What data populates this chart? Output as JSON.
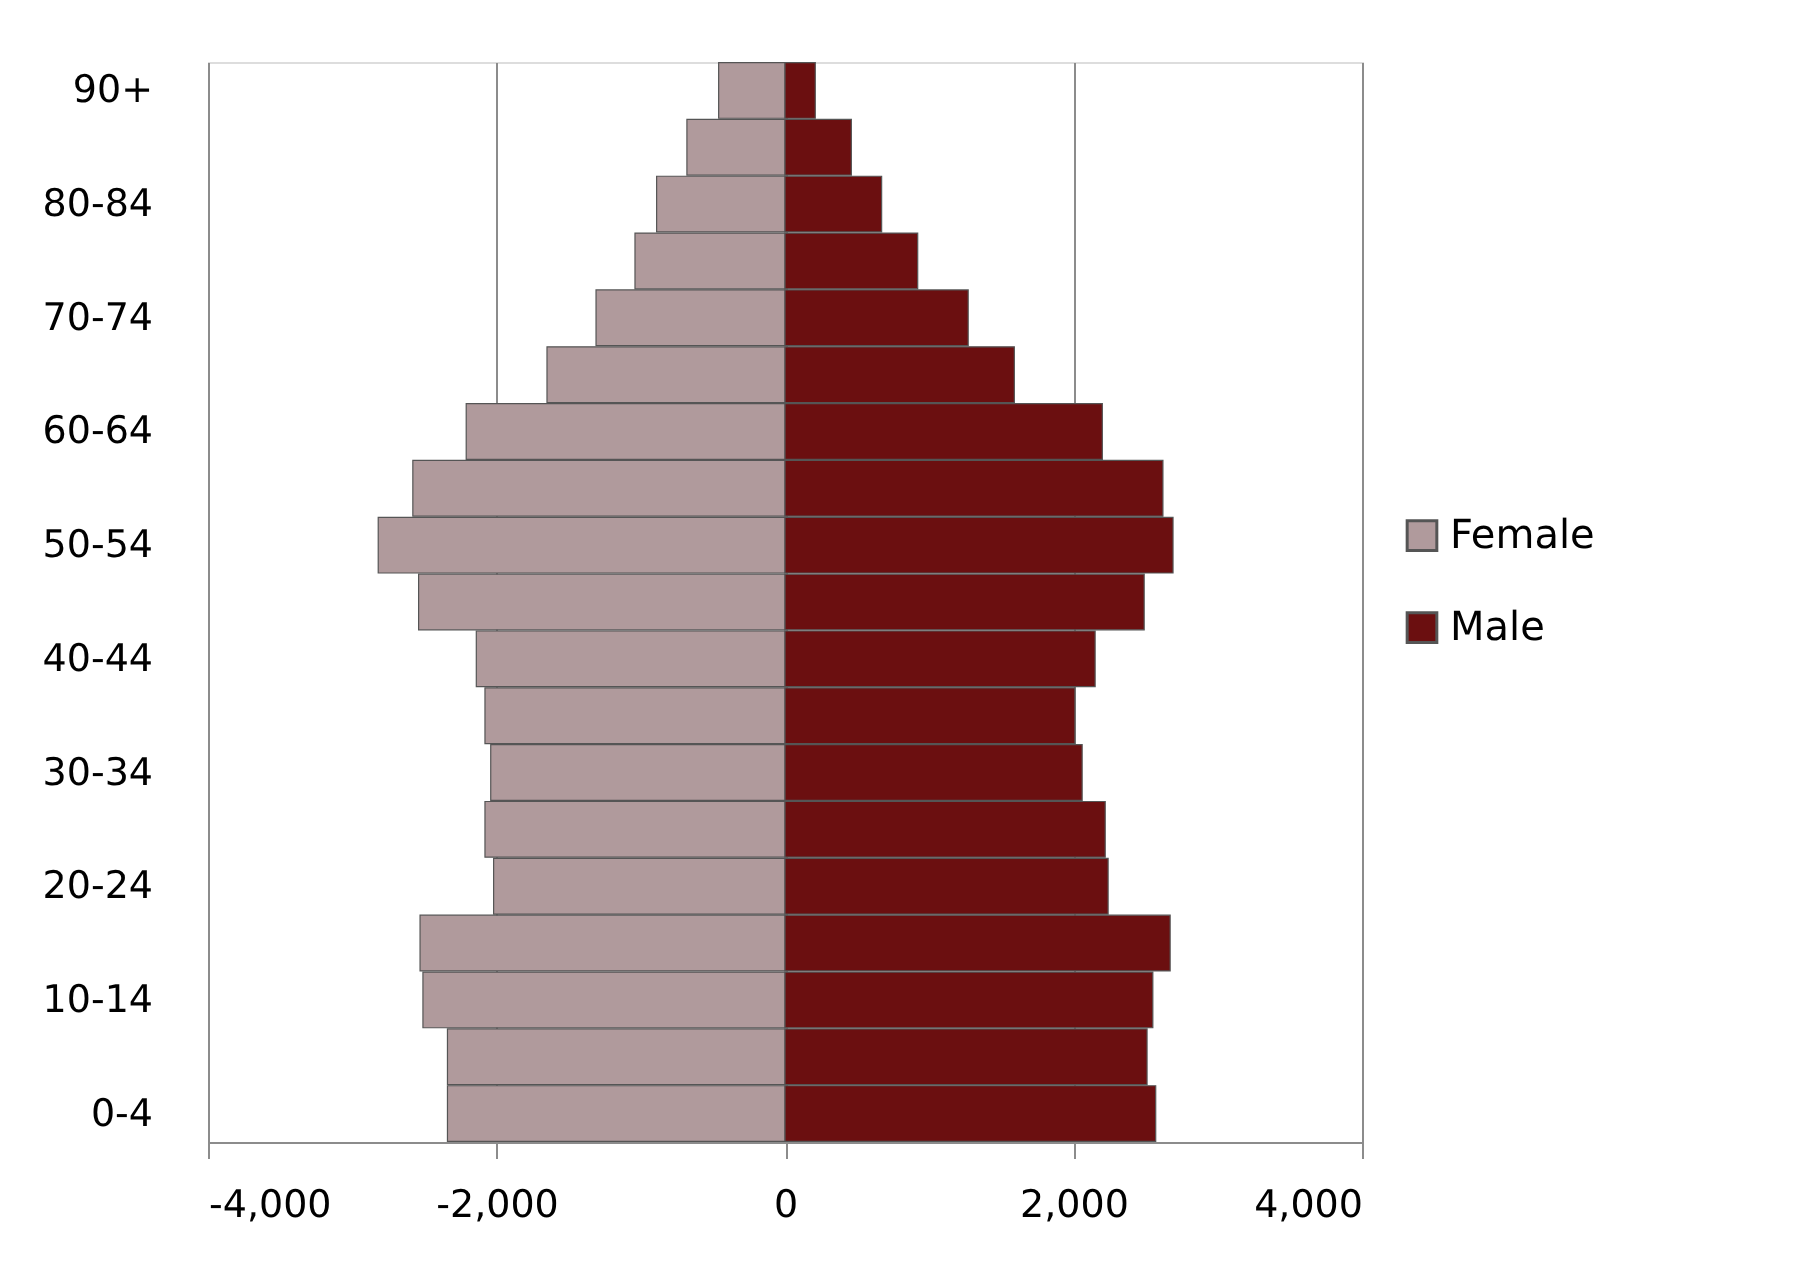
{
  "chart_data": {
    "type": "bar",
    "orientation": "horizontal",
    "categories": [
      "90+",
      null,
      "80-84",
      null,
      "70-74",
      null,
      "60-64",
      null,
      "50-54",
      null,
      "40-44",
      null,
      "30-34",
      null,
      "20-24",
      null,
      "10-14",
      null,
      "0-4"
    ],
    "series": [
      {
        "name": "Female",
        "color": "#b09a9c",
        "values": [
          -460,
          -680,
          -890,
          -1040,
          -1310,
          -1650,
          -2210,
          -2580,
          -2820,
          -2540,
          -2140,
          -2080,
          -2040,
          -2080,
          -2020,
          -2530,
          -2510,
          -2340,
          -2340
        ]
      },
      {
        "name": "Male",
        "color": "#6b0f10",
        "values": [
          210,
          460,
          670,
          920,
          1270,
          1590,
          2200,
          2620,
          2690,
          2490,
          2150,
          2010,
          2060,
          2220,
          2240,
          2670,
          2550,
          2510,
          2570
        ]
      }
    ],
    "xlim": [
      -4000,
      4000
    ],
    "xticks": [
      {
        "value": -4000,
        "label": "-4,000"
      },
      {
        "value": -2000,
        "label": "-2,000"
      },
      0,
      {
        "value": 2000,
        "label": "2,000"
      },
      {
        "value": 4000,
        "label": "4,000"
      }
    ],
    "grid": "x",
    "legend": "right",
    "stacked": true
  }
}
